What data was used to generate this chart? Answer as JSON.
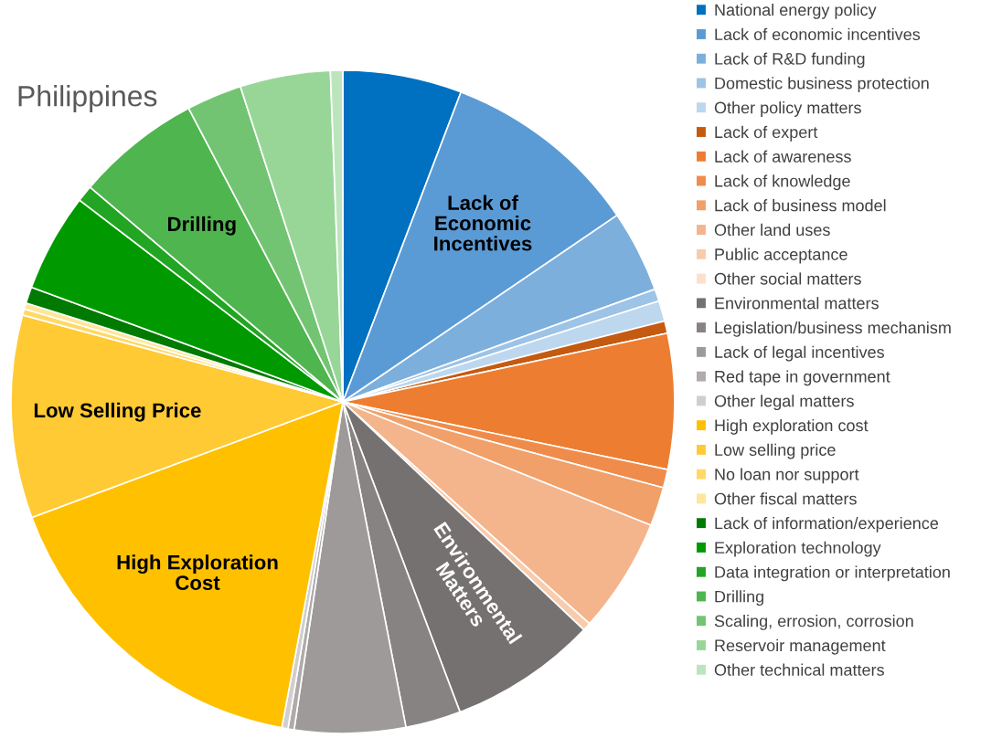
{
  "chart_data": {
    "type": "pie",
    "title": "Philippines",
    "categories": [
      "National energy policy",
      "Lack of economic incentives",
      "Lack of R&D funding",
      "Domestic business protection",
      "Other policy matters",
      "Lack of expert",
      "Lack of awareness",
      "Lack of knowledge",
      "Lack of business model",
      "Other land uses",
      "Public acceptance",
      "Other social matters",
      "Environmental matters",
      "Legislation/business mechanism",
      "Lack of legal incentives",
      "Red tape in government",
      "Other legal matters",
      "High exploration cost",
      "Low selling price",
      "No loan nor support",
      "Other fiscal matters",
      "Lack of information/experience",
      "Exploration technology",
      "Data integration or interpretation",
      "Drilling",
      "Scaling, errosion, corrosion",
      "Reservoir management",
      "Other technical matters"
    ],
    "values": [
      5.8,
      9.7,
      4.0,
      0.6,
      1.0,
      0.6,
      6.6,
      0.9,
      1.9,
      5.6,
      0.4,
      null,
      7.2,
      2.7,
      5.4,
      0.3,
      0.3,
      16.4,
      9.9,
      0.3,
      0.3,
      0.8,
      4.8,
      0.8,
      6.1,
      2.7,
      4.4,
      0.6
    ],
    "colors": [
      "#0070c0",
      "#5b9bd5",
      "#7dafdd",
      "#9dc3e6",
      "#bdd7ee",
      "#c55a11",
      "#ed7d31",
      "#ef8c4c",
      "#f1a069",
      "#f4b58c",
      "#f8cbad",
      "#fbe0cc",
      "#767171",
      "#878383",
      "#9e9a99",
      "#afabab",
      "#d0cece",
      "#ffc000",
      "#ffca33",
      "#ffd966",
      "#ffe699",
      "#007a00",
      "#009a00",
      "#22a522",
      "#4fb54f",
      "#72c472",
      "#98d698",
      "#bde5bd"
    ],
    "legend": "right",
    "annotations": [
      {
        "text": "Lack of\nEconomic\nIncentives",
        "x": "Lack of economic incentives"
      },
      {
        "text": "Environmental\nMatters",
        "x": "Environmental matters"
      },
      {
        "text": "High Exploration\nCost",
        "x": "High exploration cost"
      },
      {
        "text": "Low Selling Price",
        "x": "Low selling price"
      },
      {
        "text": "Drilling",
        "x": "Drilling"
      }
    ]
  }
}
